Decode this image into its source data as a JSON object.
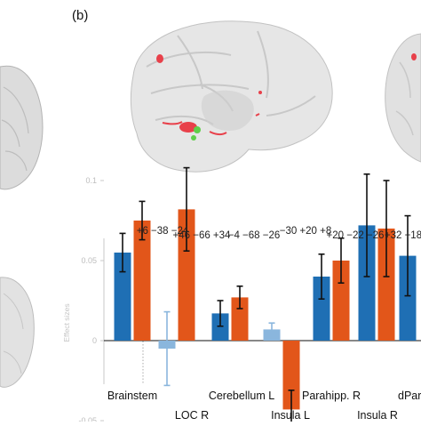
{
  "panel_label": "(b)",
  "chart_data": {
    "type": "bar",
    "ylabel": "Effect sizes",
    "ylim": [
      -0.055,
      0.125
    ],
    "yticks": [
      {
        "value": 0.1,
        "label": "0.1"
      },
      {
        "value": 0.05,
        "label": "0.05"
      },
      {
        "value": 0,
        "label": "0"
      },
      {
        "value": -0.05,
        "label": "-0.05"
      }
    ],
    "grid": false,
    "legend": "none",
    "colors": {
      "series_a": "#1f6fb4",
      "series_b": "#e2561a",
      "series_a_light": "#8ab6dd",
      "series_b_light": "#f1aa8a"
    },
    "categories": [
      "Brainstem",
      "LOC R",
      "Cerebellum L",
      "Insula L",
      "Parahipp. R",
      "Insula R",
      "dPar"
    ],
    "category_label_rows": [
      0,
      1,
      0,
      1,
      0,
      1,
      0
    ],
    "coordinates": [
      "+6 −38 −24",
      "+46 −66 +34",
      "−4 −68 −26",
      "−30 +20 +8",
      "+20 −22 −26",
      "+32 +18"
    ],
    "series": [
      {
        "values": [
          0.055,
          -0.005,
          0.017,
          0.007,
          0.04,
          0.072,
          0.053
        ],
        "errors": [
          0.012,
          0.023,
          0.008,
          0.004,
          0.014,
          0.032,
          0.025
        ],
        "faded": [
          false,
          true,
          false,
          true,
          false,
          false,
          false
        ]
      },
      {
        "values": [
          0.075,
          0.082,
          0.027,
          -0.043,
          0.05,
          0.07,
          null
        ],
        "errors": [
          0.012,
          0.026,
          0.007,
          0.012,
          0.014,
          0.03,
          null
        ],
        "faded": [
          false,
          false,
          false,
          false,
          false,
          false,
          false
        ]
      }
    ]
  }
}
